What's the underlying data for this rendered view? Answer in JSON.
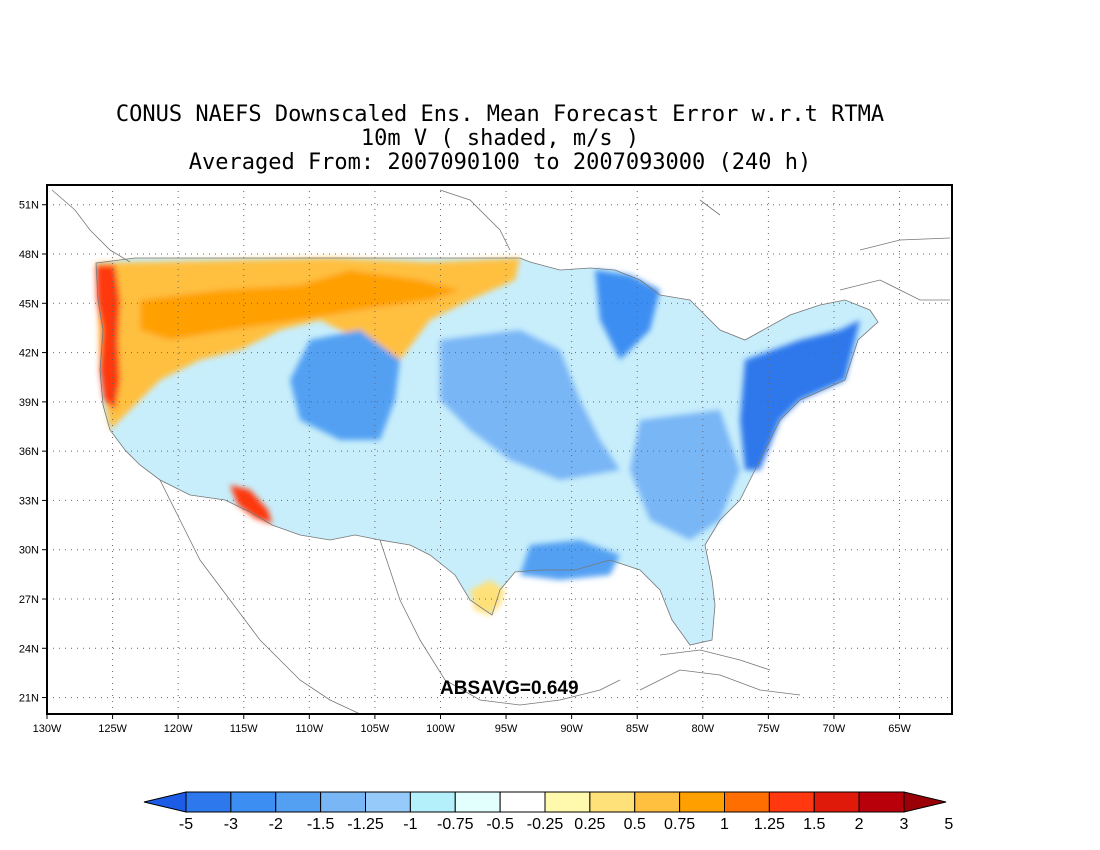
{
  "title": {
    "line1": "CONUS NAEFS Downscaled Ens. Mean Forecast Error w.r.t RTMA",
    "line2": "10m V ( shaded, m/s )",
    "line3": "Averaged From: 2007090100 to 2007093000 (240 h)"
  },
  "stat_label": "ABSAVG=0.649",
  "map": {
    "lon_range": [
      -130,
      -61
    ],
    "lat_range": [
      20,
      52.2
    ],
    "lon_ticks": [
      "130W",
      "125W",
      "120W",
      "115W",
      "110W",
      "105W",
      "100W",
      "95W",
      "90W",
      "85W",
      "80W",
      "75W",
      "70W",
      "65W"
    ],
    "lat_ticks": [
      "21N",
      "24N",
      "27N",
      "30N",
      "33N",
      "36N",
      "39N",
      "42N",
      "45N",
      "48N",
      "51N"
    ],
    "grid": "dotted"
  },
  "colorbar": {
    "colors": [
      "#1c5ce6",
      "#2d78ec",
      "#3c8ef2",
      "#53a0f3",
      "#79b6f6",
      "#96cafa",
      "#b4f0fb",
      "#e2fffd",
      "#ffffff",
      "#fff9ad",
      "#ffe17a",
      "#ffc040",
      "#ffa000",
      "#ff6e00",
      "#ff3810",
      "#e01a0a",
      "#b7000a",
      "#9a0006"
    ],
    "labels": [
      "-5",
      "-3",
      "-2",
      "-1.5",
      "-1.25",
      "-1",
      "-0.75",
      "-0.5",
      "-0.25",
      "0.25",
      "0.5",
      "0.75",
      "1",
      "1.25",
      "1.5",
      "2",
      "3",
      "5"
    ],
    "extends": "both"
  }
}
